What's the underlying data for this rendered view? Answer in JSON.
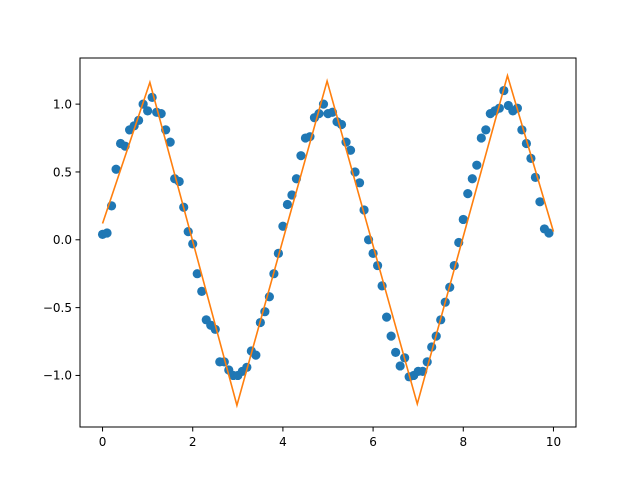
{
  "chart_data": {
    "type": "scatter",
    "title": "",
    "xlabel": "",
    "ylabel": "",
    "xlim": [
      -0.5,
      10.5
    ],
    "ylim": [
      -1.38,
      1.34
    ],
    "grid": false,
    "legend": "none",
    "x_ticks": [
      {
        "value": 0,
        "label": "0"
      },
      {
        "value": 2,
        "label": "2"
      },
      {
        "value": 4,
        "label": "4"
      },
      {
        "value": 6,
        "label": "6"
      },
      {
        "value": 8,
        "label": "8"
      },
      {
        "value": 10,
        "label": "10"
      }
    ],
    "y_ticks": [
      {
        "value": -1.0,
        "label": "−1.0"
      },
      {
        "value": -0.5,
        "label": "−0.5"
      },
      {
        "value": 0.0,
        "label": "0.0"
      },
      {
        "value": 0.5,
        "label": "0.5"
      },
      {
        "value": 1.0,
        "label": "1.0"
      }
    ],
    "series": [
      {
        "type": "scatter",
        "color": "#1f77b4",
        "points": [
          [
            0.0,
            0.04
          ],
          [
            0.1,
            0.05
          ],
          [
            0.2,
            0.25
          ],
          [
            0.3,
            0.52
          ],
          [
            0.4,
            0.71
          ],
          [
            0.5,
            0.69
          ],
          [
            0.6,
            0.81
          ],
          [
            0.7,
            0.84
          ],
          [
            0.8,
            0.88
          ],
          [
            0.9,
            1.0
          ],
          [
            1.0,
            0.95
          ],
          [
            1.1,
            1.05
          ],
          [
            1.2,
            0.94
          ],
          [
            1.3,
            0.93
          ],
          [
            1.4,
            0.81
          ],
          [
            1.5,
            0.72
          ],
          [
            1.6,
            0.45
          ],
          [
            1.7,
            0.43
          ],
          [
            1.8,
            0.24
          ],
          [
            1.9,
            0.06
          ],
          [
            2.0,
            -0.03
          ],
          [
            2.1,
            -0.25
          ],
          [
            2.2,
            -0.38
          ],
          [
            2.3,
            -0.59
          ],
          [
            2.4,
            -0.63
          ],
          [
            2.5,
            -0.66
          ],
          [
            2.6,
            -0.9
          ],
          [
            2.7,
            -0.9
          ],
          [
            2.8,
            -0.96
          ],
          [
            2.9,
            -1.0
          ],
          [
            3.0,
            -1.0
          ],
          [
            3.1,
            -0.97
          ],
          [
            3.2,
            -0.94
          ],
          [
            3.3,
            -0.82
          ],
          [
            3.4,
            -0.85
          ],
          [
            3.5,
            -0.61
          ],
          [
            3.6,
            -0.53
          ],
          [
            3.7,
            -0.42
          ],
          [
            3.8,
            -0.25
          ],
          [
            3.9,
            -0.1
          ],
          [
            4.0,
            0.1
          ],
          [
            4.1,
            0.26
          ],
          [
            4.2,
            0.33
          ],
          [
            4.3,
            0.45
          ],
          [
            4.4,
            0.62
          ],
          [
            4.5,
            0.75
          ],
          [
            4.6,
            0.76
          ],
          [
            4.7,
            0.9
          ],
          [
            4.8,
            0.93
          ],
          [
            4.9,
            1.0
          ],
          [
            5.0,
            0.93
          ],
          [
            5.1,
            0.94
          ],
          [
            5.2,
            0.87
          ],
          [
            5.3,
            0.85
          ],
          [
            5.4,
            0.72
          ],
          [
            5.5,
            0.66
          ],
          [
            5.6,
            0.5
          ],
          [
            5.7,
            0.42
          ],
          [
            5.8,
            0.22
          ],
          [
            5.9,
            0.0
          ],
          [
            6.0,
            -0.1
          ],
          [
            6.1,
            -0.19
          ],
          [
            6.2,
            -0.34
          ],
          [
            6.3,
            -0.57
          ],
          [
            6.4,
            -0.71
          ],
          [
            6.5,
            -0.83
          ],
          [
            6.6,
            -0.93
          ],
          [
            6.7,
            -0.87
          ],
          [
            6.8,
            -1.01
          ],
          [
            6.9,
            -1.0
          ],
          [
            7.0,
            -0.97
          ],
          [
            7.1,
            -0.97
          ],
          [
            7.2,
            -0.9
          ],
          [
            7.3,
            -0.79
          ],
          [
            7.4,
            -0.71
          ],
          [
            7.5,
            -0.59
          ],
          [
            7.6,
            -0.46
          ],
          [
            7.7,
            -0.35
          ],
          [
            7.8,
            -0.19
          ],
          [
            7.9,
            -0.02
          ],
          [
            8.0,
            0.15
          ],
          [
            8.1,
            0.34
          ],
          [
            8.2,
            0.45
          ],
          [
            8.3,
            0.55
          ],
          [
            8.4,
            0.75
          ],
          [
            8.5,
            0.81
          ],
          [
            8.6,
            0.93
          ],
          [
            8.7,
            0.95
          ],
          [
            8.8,
            0.97
          ],
          [
            8.9,
            1.1
          ],
          [
            9.0,
            0.99
          ],
          [
            9.1,
            0.95
          ],
          [
            9.2,
            0.97
          ],
          [
            9.3,
            0.81
          ],
          [
            9.4,
            0.71
          ],
          [
            9.5,
            0.6
          ],
          [
            9.6,
            0.46
          ],
          [
            9.7,
            0.28
          ],
          [
            9.8,
            0.08
          ],
          [
            9.9,
            0.05
          ]
        ]
      },
      {
        "type": "line",
        "color": "#ff7f0e",
        "points": [
          [
            0.0,
            0.12
          ],
          [
            1.05,
            1.16
          ],
          [
            2.98,
            -1.22
          ],
          [
            4.98,
            1.17
          ],
          [
            6.98,
            -1.21
          ],
          [
            8.98,
            1.21
          ],
          [
            10.0,
            0.06
          ]
        ]
      }
    ]
  }
}
